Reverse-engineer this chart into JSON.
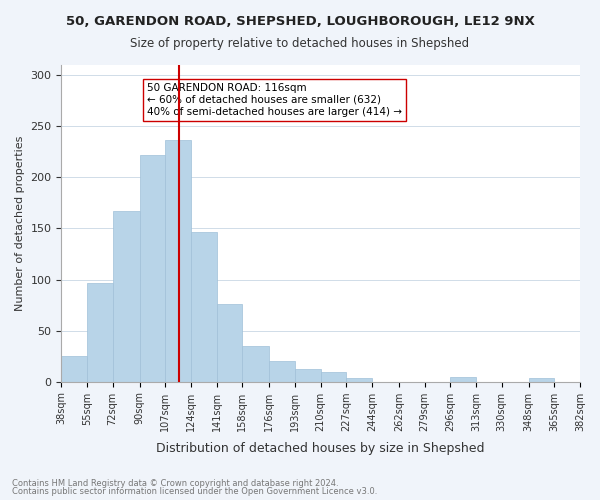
{
  "title": "50, GARENDON ROAD, SHEPSHED, LOUGHBOROUGH, LE12 9NX",
  "subtitle": "Size of property relative to detached houses in Shepshed",
  "xlabel": "Distribution of detached houses by size in Shepshed",
  "ylabel": "Number of detached properties",
  "bar_color": "#b8d4e8",
  "bar_edge_color": "#a0c0d8",
  "vline_x": 116,
  "vline_color": "#cc0000",
  "annotation_box_text": "50 GARENDON ROAD: 116sqm\n← 60% of detached houses are smaller (632)\n40% of semi-detached houses are larger (414) →",
  "footnote1": "Contains HM Land Registry data © Crown copyright and database right 2024.",
  "footnote2": "Contains public sector information licensed under the Open Government Licence v3.0.",
  "bin_edges": [
    38,
    55,
    72,
    90,
    107,
    124,
    141,
    158,
    176,
    193,
    210,
    227,
    244,
    262,
    279,
    296,
    313,
    330,
    348,
    365,
    382
  ],
  "bar_heights": [
    25,
    97,
    167,
    222,
    237,
    147,
    76,
    35,
    20,
    12,
    9,
    4,
    0,
    0,
    0,
    5,
    0,
    0,
    4,
    0,
    1
  ],
  "ylim": [
    0,
    310
  ],
  "yticks": [
    0,
    50,
    100,
    150,
    200,
    250,
    300
  ],
  "background_color": "#f0f4fa",
  "plot_bg_color": "#ffffff",
  "grid_color": "#d0dce8"
}
